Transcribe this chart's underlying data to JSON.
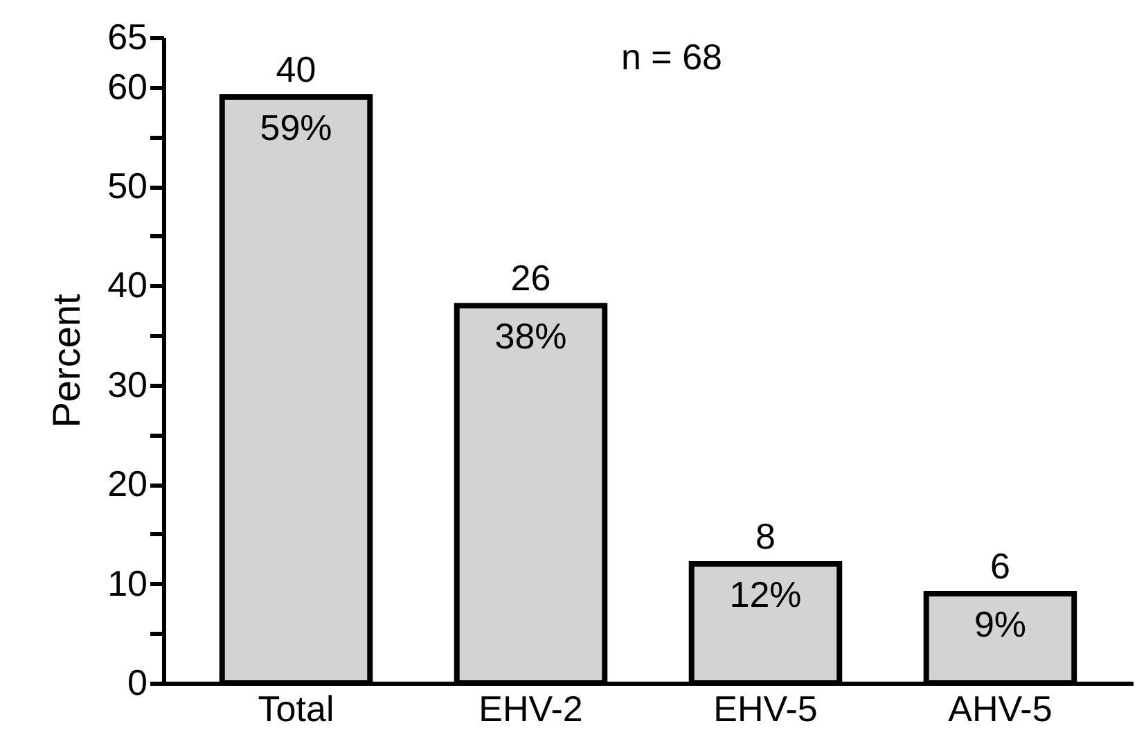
{
  "chart_data": {
    "type": "bar",
    "ylabel": "Percent",
    "categories": [
      "Total",
      "EHV-2",
      "EHV-5",
      "AHV-5"
    ],
    "values": [
      59,
      38,
      12,
      9
    ],
    "value_labels": [
      "59%",
      "38%",
      "12%",
      "9%"
    ],
    "color": "#d3d3d3",
    "ylim": [
      0,
      65
    ],
    "yticks": [
      0,
      {
        "value": 5,
        "label": null
      },
      10,
      {
        "value": 15,
        "label": null
      },
      20,
      {
        "value": 25,
        "label": null
      },
      30,
      {
        "value": 35,
        "label": null
      },
      40,
      {
        "value": 45,
        "label": null
      },
      50,
      {
        "value": 55,
        "label": null
      },
      60,
      65
    ],
    "grid": false,
    "annotations": [
      "n = 68",
      {
        "text": "40",
        "x": "Total",
        "y": 59
      },
      {
        "text": "26",
        "x": "EHV-2",
        "y": 38
      },
      {
        "text": "8",
        "x": "EHV-5",
        "y": 12
      },
      {
        "text": "6",
        "x": "AHV-5",
        "y": 9
      }
    ]
  }
}
